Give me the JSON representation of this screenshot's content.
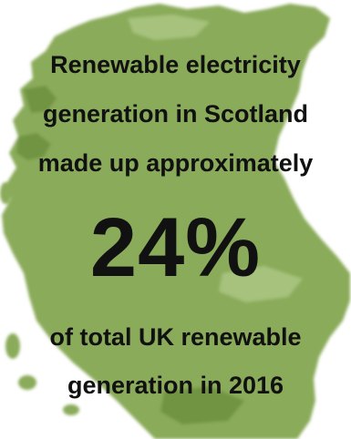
{
  "headline": {
    "line1": "Renewable electricity",
    "line2": "generation in Scotland",
    "line3": "made up approximately"
  },
  "stat": {
    "value": "24%"
  },
  "footer": {
    "line1": "of total UK renewable",
    "line2": "generation in 2016"
  },
  "colors": {
    "map_fill": "#8aab5a",
    "map_dark": "#6f9443",
    "map_light": "#a6c27c",
    "text": "#111111",
    "background": "#ffffff"
  }
}
